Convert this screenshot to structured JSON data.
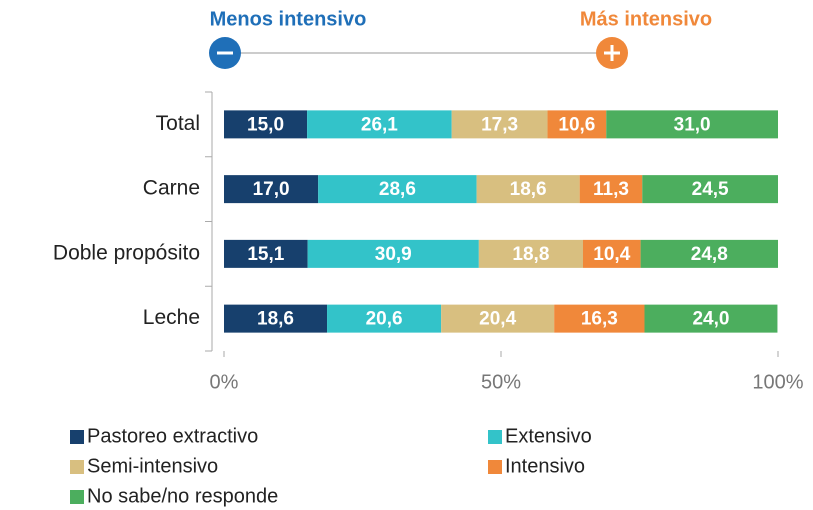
{
  "chart_data": {
    "type": "stacked-bar-horizontal",
    "annotations": [
      "Menos intensivo",
      "Más intensivo"
    ],
    "categories": [
      "Total",
      "Carne",
      "Doble propósito",
      "Leche"
    ],
    "series": [
      {
        "name": "Pastoreo extractivo",
        "color": "#17406d",
        "values": [
          15.0,
          17.0,
          15.1,
          18.6
        ],
        "value_labels": [
          "15,0",
          "17,0",
          "15,1",
          "18,6"
        ]
      },
      {
        "name": "Extensivo",
        "color": "#33c3c9",
        "values": [
          26.1,
          28.6,
          30.9,
          20.6
        ],
        "value_labels": [
          "26,1",
          "28,6",
          "30,9",
          "20,6"
        ]
      },
      {
        "name": "Semi-intensivo",
        "color": "#d8bf80",
        "values": [
          17.3,
          18.6,
          18.8,
          20.4
        ],
        "value_labels": [
          "17,3",
          "18,6",
          "18,8",
          "20,4"
        ]
      },
      {
        "name": "Intensivo",
        "color": "#f0883a",
        "values": [
          10.6,
          11.3,
          10.4,
          16.3
        ],
        "value_labels": [
          "10,6",
          "11,3",
          "10,4",
          "16,3"
        ]
      },
      {
        "name": "No sabe/no responde",
        "color": "#4cae5e",
        "values": [
          31.0,
          24.5,
          24.8,
          24.0
        ],
        "value_labels": [
          "31,0",
          "24,5",
          "24,8",
          "24,0"
        ]
      }
    ],
    "xlim": [
      0,
      100
    ],
    "xticks": [
      {
        "value": 0,
        "label": "0%"
      },
      {
        "value": 50,
        "label": "50%"
      },
      {
        "value": 100,
        "label": "100%"
      }
    ]
  }
}
